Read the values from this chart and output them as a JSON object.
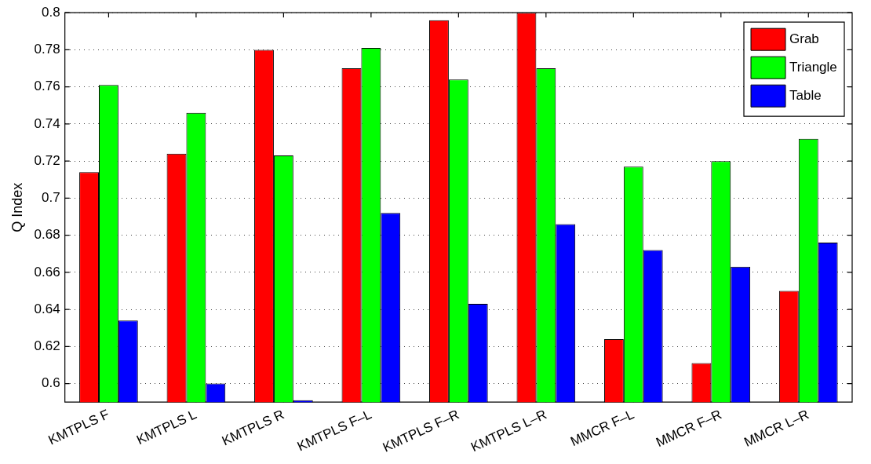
{
  "chart_data": {
    "type": "bar",
    "ylabel": "Q Index",
    "categories": [
      "KMTPLS F",
      "KMTPLS L",
      "KMTPLS R",
      "KMTPLS F–L",
      "KMTPLS F–R",
      "KMTPLS L–R",
      "MMCR F–L",
      "MMCR F–R",
      "MMCR L–R"
    ],
    "series": [
      {
        "name": "Grab",
        "color": "#ff0000",
        "values": [
          0.714,
          0.724,
          0.78,
          0.77,
          0.796,
          0.8,
          0.624,
          0.611,
          0.65
        ]
      },
      {
        "name": "Triangle",
        "color": "#00ff00",
        "values": [
          0.761,
          0.746,
          0.723,
          0.781,
          0.764,
          0.77,
          0.717,
          0.72,
          0.732
        ]
      },
      {
        "name": "Table",
        "color": "#0000ff",
        "values": [
          0.634,
          0.6,
          0.591,
          0.692,
          0.643,
          0.686,
          0.672,
          0.663,
          0.676
        ]
      }
    ],
    "ylim": [
      0.59,
      0.8
    ],
    "yticks": [
      0.6,
      0.62,
      0.64,
      0.66,
      0.68,
      0.7,
      0.72,
      0.74,
      0.76,
      0.78,
      0.8
    ],
    "grid": "y",
    "legend": "top right"
  }
}
